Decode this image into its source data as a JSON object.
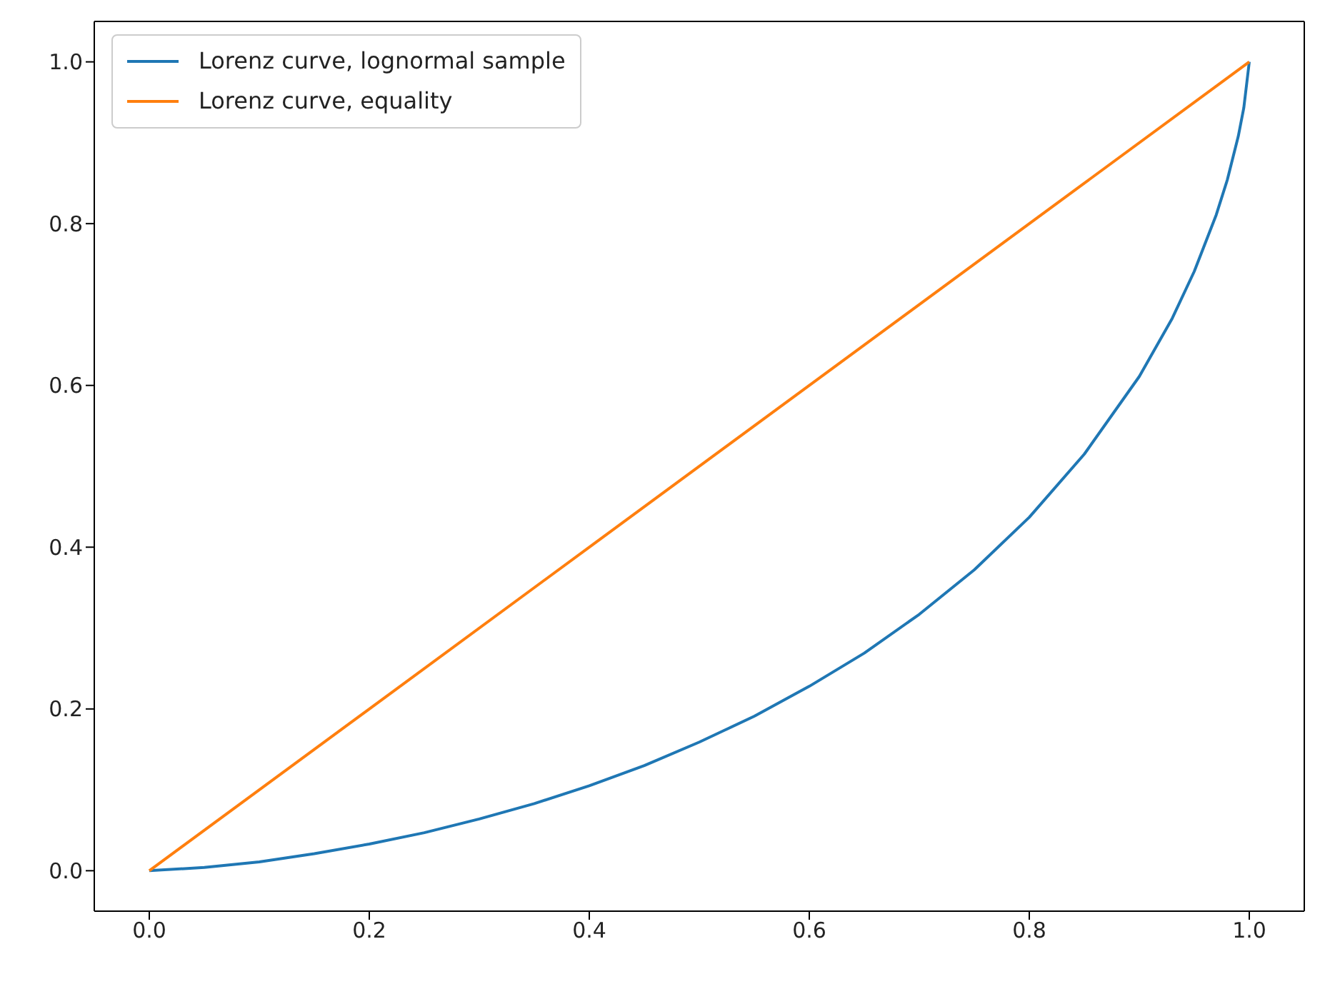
{
  "chart_data": {
    "type": "line",
    "xlim": [
      -0.05,
      1.05
    ],
    "ylim": [
      -0.05,
      1.05
    ],
    "xticks": [
      {
        "value": 0,
        "label": "0.0"
      },
      {
        "value": 0.2,
        "label": "0.2"
      },
      {
        "value": 0.4,
        "label": "0.4"
      },
      {
        "value": 0.6,
        "label": "0.6"
      },
      {
        "value": 0.8,
        "label": "0.8"
      },
      {
        "value": 1,
        "label": "1.0"
      }
    ],
    "yticks": [
      {
        "value": 0,
        "label": "0.0"
      },
      {
        "value": 0.2,
        "label": "0.2"
      },
      {
        "value": 0.4,
        "label": "0.4"
      },
      {
        "value": 0.6,
        "label": "0.6"
      },
      {
        "value": 0.8,
        "label": "0.8"
      },
      {
        "value": 1,
        "label": "1.0"
      }
    ],
    "legend": "top left",
    "marker": "none",
    "line_style": "solid",
    "series": [
      {
        "name": "Lorenz curve, lognormal sample",
        "color": "#1f77b4",
        "x": [
          0,
          0.05,
          0.1,
          0.15,
          0.2,
          0.25,
          0.3,
          0.35,
          0.4,
          0.45,
          0.5,
          0.55,
          0.6,
          0.65,
          0.7,
          0.75,
          0.8,
          0.85,
          0.9,
          0.93,
          0.95,
          0.97,
          0.98,
          0.99,
          0.995,
          1.0
        ],
        "values": [
          0,
          0.004,
          0.011,
          0.021,
          0.033,
          0.047,
          0.064,
          0.083,
          0.105,
          0.13,
          0.159,
          0.191,
          0.228,
          0.269,
          0.317,
          0.372,
          0.437,
          0.515,
          0.611,
          0.683,
          0.741,
          0.811,
          0.854,
          0.908,
          0.943,
          1.0
        ]
      },
      {
        "name": "Lorenz curve, equality",
        "color": "#ff7f0e",
        "x": [
          0,
          1
        ],
        "values": [
          0,
          1
        ]
      }
    ]
  }
}
